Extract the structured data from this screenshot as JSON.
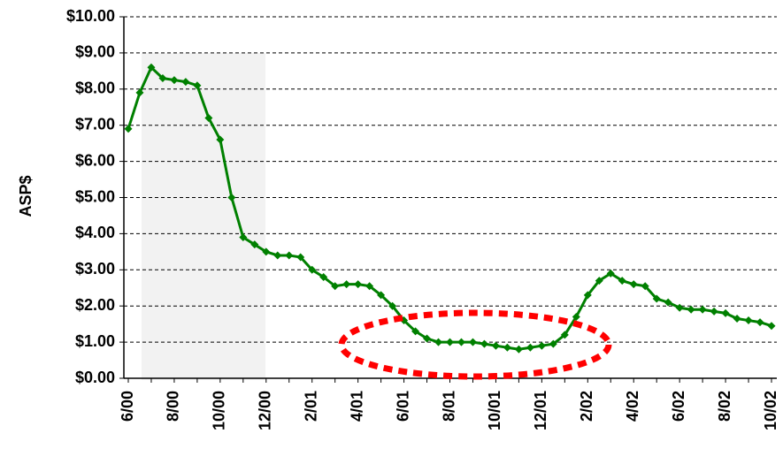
{
  "chart_data": {
    "type": "line",
    "y_label": "ASP$",
    "categories": [
      "6/00",
      null,
      null,
      null,
      "8/00",
      null,
      null,
      null,
      "10/00",
      null,
      null,
      null,
      "12/00",
      null,
      null,
      null,
      "2/01",
      null,
      null,
      null,
      "4/01",
      null,
      null,
      null,
      "6/01",
      null,
      null,
      null,
      "8/01",
      null,
      null,
      null,
      "10/01",
      null,
      null,
      null,
      "12/01",
      null,
      null,
      null,
      "2/02",
      null,
      null,
      null,
      "4/02",
      null,
      null,
      null,
      "6/02",
      null,
      null,
      null,
      "8/02",
      null,
      null,
      null,
      "10/02"
    ],
    "values": [
      6.9,
      7.9,
      8.6,
      8.3,
      8.25,
      8.2,
      8.1,
      7.2,
      6.6,
      5.0,
      3.9,
      3.7,
      3.5,
      3.4,
      3.4,
      3.35,
      3.0,
      2.8,
      2.55,
      2.6,
      2.6,
      2.55,
      2.3,
      2.0,
      1.6,
      1.3,
      1.1,
      1.0,
      1.0,
      1.0,
      1.0,
      0.95,
      0.9,
      0.85,
      0.8,
      0.85,
      0.9,
      0.95,
      1.2,
      1.7,
      2.3,
      2.7,
      2.9,
      2.7,
      2.6,
      2.55,
      2.2,
      2.1,
      1.95,
      1.9,
      1.9,
      1.85,
      1.8,
      1.65,
      1.6,
      1.55,
      1.45
    ],
    "color": "#008000",
    "ylim": [
      0,
      10
    ],
    "yticks": [
      {
        "value": 0,
        "label": "$0.00"
      },
      {
        "value": 1,
        "label": "$1.00"
      },
      {
        "value": 2,
        "label": "$2.00"
      },
      {
        "value": 3,
        "label": "$3.00"
      },
      {
        "value": 4,
        "label": "$4.00"
      },
      {
        "value": 5,
        "label": "$5.00"
      },
      {
        "value": 6,
        "label": "$6.00"
      },
      {
        "value": 7,
        "label": "$7.00"
      },
      {
        "value": 8,
        "label": "$8.00"
      },
      {
        "value": 9,
        "label": "$9.00"
      },
      {
        "value": 10,
        "label": "$10.00"
      }
    ],
    "grid": true
  }
}
